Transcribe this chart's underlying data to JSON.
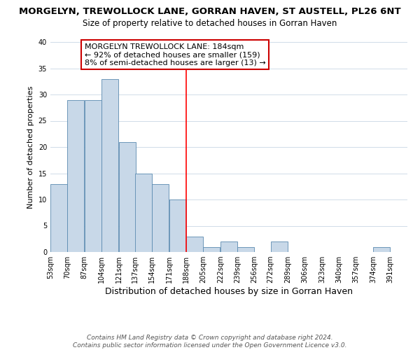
{
  "title": "MORGELYN, TREWOLLOCK LANE, GORRAN HAVEN, ST AUSTELL, PL26 6NT",
  "subtitle": "Size of property relative to detached houses in Gorran Haven",
  "xlabel": "Distribution of detached houses by size in Gorran Haven",
  "ylabel": "Number of detached properties",
  "bar_color": "#c8d8e8",
  "bar_edge_color": "#5a8ab0",
  "background_color": "#ffffff",
  "grid_color": "#d0dce8",
  "vline_color": "red",
  "annotation_text": "MORGELYN TREWOLLOCK LANE: 184sqm\n← 92% of detached houses are smaller (159)\n8% of semi-detached houses are larger (13) →",
  "annotation_box_edge": "#cc0000",
  "ylim": [
    0,
    40
  ],
  "yticks": [
    0,
    5,
    10,
    15,
    20,
    25,
    30,
    35,
    40
  ],
  "bins_left": [
    53,
    70,
    87,
    104,
    121,
    137,
    154,
    171,
    188,
    205,
    222,
    239,
    256,
    272,
    289,
    306,
    323,
    340,
    357,
    374,
    391
  ],
  "bin_width": 17,
  "counts": [
    13,
    29,
    29,
    33,
    21,
    15,
    13,
    10,
    3,
    1,
    2,
    1,
    0,
    2,
    0,
    0,
    0,
    0,
    0,
    1,
    0
  ],
  "footer_line1": "Contains HM Land Registry data © Crown copyright and database right 2024.",
  "footer_line2": "Contains public sector information licensed under the Open Government Licence v3.0.",
  "title_fontsize": 9.5,
  "subtitle_fontsize": 8.5,
  "xlabel_fontsize": 9,
  "ylabel_fontsize": 8,
  "tick_fontsize": 7,
  "annotation_fontsize": 8,
  "footer_fontsize": 6.5
}
